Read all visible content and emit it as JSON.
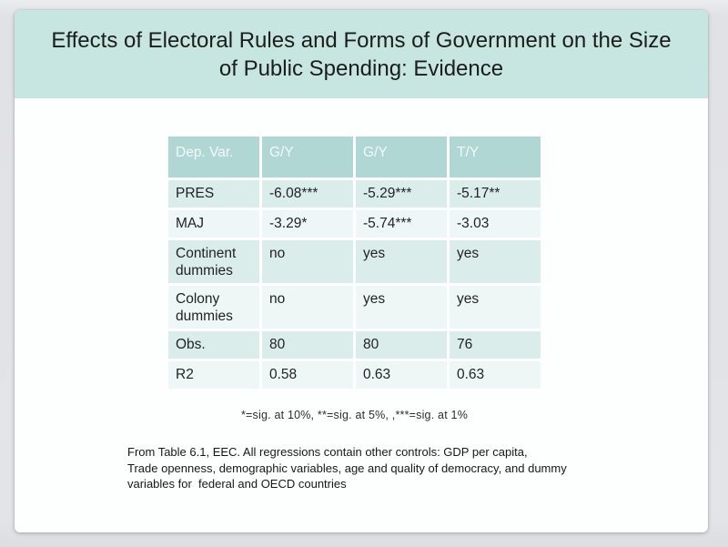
{
  "slide": {
    "title": "Effects of Electoral Rules and Forms of Government on the Size of Public Spending: Evidence",
    "title_lines": [
      "Effects of Electoral Rules and Forms of Government on the Size",
      "of Public Spending: Evidence"
    ],
    "table": {
      "headers": [
        "Dep. Var.",
        "G/Y",
        "G/Y",
        "T/Y"
      ],
      "rows": [
        {
          "label": "PRES",
          "values": [
            "-6.08***",
            "-5.29***",
            "-5.17**"
          ]
        },
        {
          "label": "MAJ",
          "values": [
            "-3.29*",
            "-5.74***",
            "-3.03"
          ]
        },
        {
          "label": "Continent dummies",
          "values": [
            "no",
            "yes",
            "yes"
          ]
        },
        {
          "label": "Colony dummies",
          "values": [
            "no",
            "yes",
            "yes"
          ]
        },
        {
          "label": "Obs.",
          "values": [
            "80",
            "80",
            "76"
          ]
        },
        {
          "label": "R2",
          "values": [
            "0.58",
            "0.63",
            "0.63"
          ]
        }
      ]
    },
    "footnote": "*=sig. at 10%, **=sig. at 5%, ,***=sig. at 1%",
    "source_note_lines": [
      "From Table 6.1, EEC. All regressions contain other controls: GDP per capita,",
      "Trade openness, demographic variables, age and quality of democracy, and dummy",
      "variables for  federal and OECD countries"
    ],
    "colors": {
      "title_band": "#c8e6e1",
      "table_header": "#b0d7d4",
      "row_odd": "#dbedeb",
      "row_even": "#eff7f6"
    }
  }
}
